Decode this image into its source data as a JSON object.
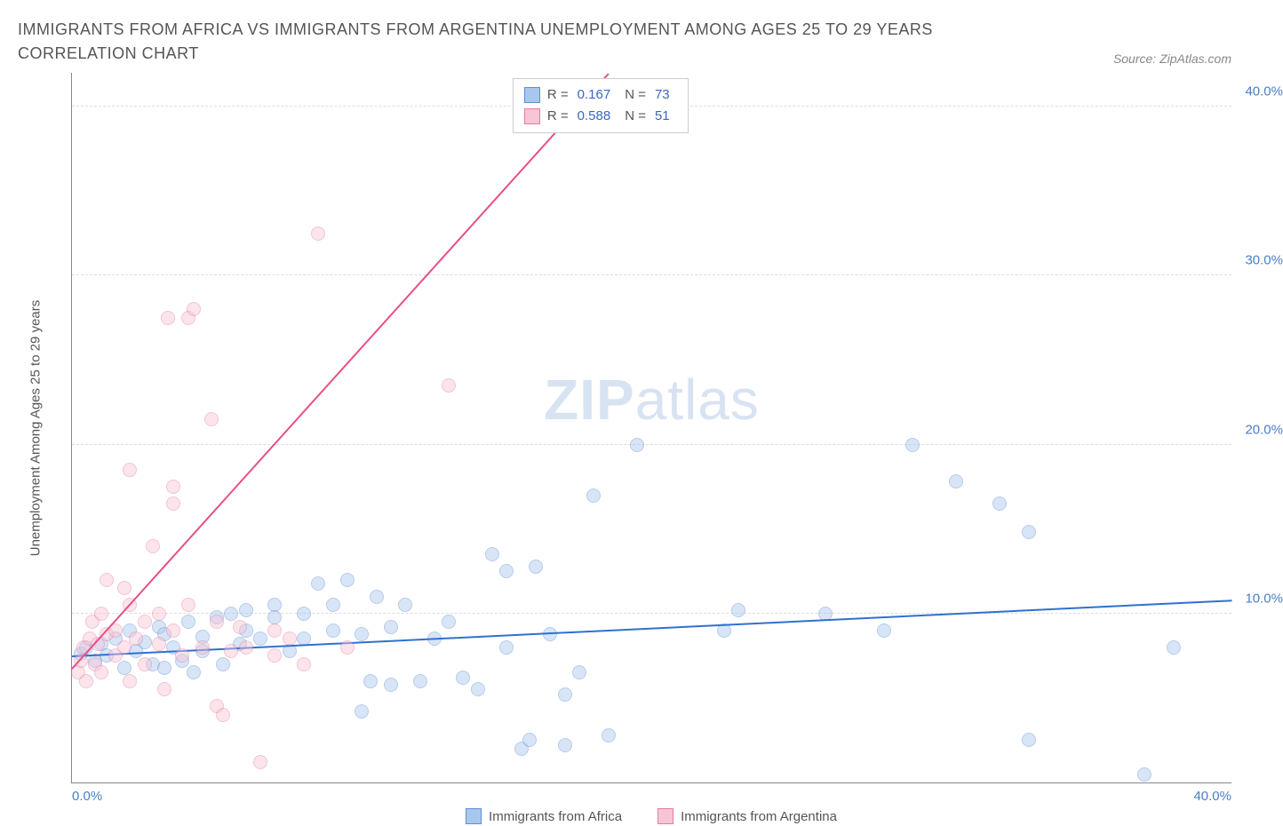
{
  "title": "IMMIGRANTS FROM AFRICA VS IMMIGRANTS FROM ARGENTINA UNEMPLOYMENT AMONG AGES 25 TO 29 YEARS CORRELATION CHART",
  "source": "Source: ZipAtlas.com",
  "y_axis_label": "Unemployment Among Ages 25 to 29 years",
  "watermark_bold": "ZIP",
  "watermark_rest": "atlas",
  "chart": {
    "type": "scatter",
    "xlim": [
      0,
      40
    ],
    "ylim": [
      0,
      42
    ],
    "x_ticks": [
      {
        "pos": 0,
        "label": "0.0%",
        "align": "left"
      },
      {
        "pos": 40,
        "label": "40.0%",
        "align": "right"
      }
    ],
    "y_ticks": [
      {
        "pos": 10,
        "label": "10.0%"
      },
      {
        "pos": 20,
        "label": "20.0%"
      },
      {
        "pos": 30,
        "label": "30.0%"
      },
      {
        "pos": 40,
        "label": "40.0%"
      }
    ],
    "grid_color": "#dddddd",
    "background_color": "#ffffff",
    "marker_radius": 8,
    "marker_opacity": 0.45,
    "series": [
      {
        "key": "africa",
        "label": "Immigrants from Africa",
        "fill": "#a9c7ee",
        "stroke": "#5e8fd4",
        "trend_color": "#2f71d0",
        "trend": {
          "x1": 0,
          "y1": 7.5,
          "x2": 40,
          "y2": 10.8
        },
        "legend_R": "0.167",
        "legend_N": "73",
        "points": [
          [
            0.3,
            7.6
          ],
          [
            0.5,
            8.0
          ],
          [
            0.8,
            7.2
          ],
          [
            1.0,
            8.2
          ],
          [
            1.2,
            7.5
          ],
          [
            1.5,
            8.5
          ],
          [
            1.8,
            6.8
          ],
          [
            2.0,
            9.0
          ],
          [
            2.2,
            7.8
          ],
          [
            2.5,
            8.3
          ],
          [
            2.8,
            7.0
          ],
          [
            3.0,
            9.2
          ],
          [
            3.2,
            6.8
          ],
          [
            3.2,
            8.8
          ],
          [
            3.5,
            8.0
          ],
          [
            3.8,
            7.2
          ],
          [
            4.0,
            9.5
          ],
          [
            4.2,
            6.5
          ],
          [
            4.5,
            8.6
          ],
          [
            4.5,
            7.8
          ],
          [
            5.0,
            9.8
          ],
          [
            5.2,
            7.0
          ],
          [
            5.5,
            10.0
          ],
          [
            5.8,
            8.2
          ],
          [
            6.0,
            9.0
          ],
          [
            6.0,
            10.2
          ],
          [
            6.5,
            8.5
          ],
          [
            7.0,
            10.5
          ],
          [
            7.0,
            9.8
          ],
          [
            7.5,
            7.8
          ],
          [
            8.0,
            10.0
          ],
          [
            8.0,
            8.5
          ],
          [
            8.5,
            11.8
          ],
          [
            9.0,
            10.5
          ],
          [
            9.0,
            9.0
          ],
          [
            9.5,
            12.0
          ],
          [
            10.0,
            8.8
          ],
          [
            10.0,
            4.2
          ],
          [
            10.3,
            6.0
          ],
          [
            10.5,
            11.0
          ],
          [
            11.0,
            9.2
          ],
          [
            11.0,
            5.8
          ],
          [
            11.5,
            10.5
          ],
          [
            12.0,
            6.0
          ],
          [
            12.5,
            8.5
          ],
          [
            13.0,
            9.5
          ],
          [
            13.5,
            6.2
          ],
          [
            14.0,
            5.5
          ],
          [
            14.5,
            13.5
          ],
          [
            15.0,
            8.0
          ],
          [
            15.0,
            12.5
          ],
          [
            15.5,
            2.0
          ],
          [
            15.8,
            2.5
          ],
          [
            16.0,
            12.8
          ],
          [
            16.5,
            8.8
          ],
          [
            17.0,
            5.2
          ],
          [
            17.0,
            2.2
          ],
          [
            17.5,
            6.5
          ],
          [
            18.0,
            17.0
          ],
          [
            18.5,
            2.8
          ],
          [
            19.5,
            20.0
          ],
          [
            22.5,
            9.0
          ],
          [
            23.0,
            10.2
          ],
          [
            26.0,
            10.0
          ],
          [
            28.0,
            9.0
          ],
          [
            29.0,
            20.0
          ],
          [
            30.5,
            17.8
          ],
          [
            32.0,
            16.5
          ],
          [
            33.0,
            14.8
          ],
          [
            33.0,
            2.5
          ],
          [
            37.0,
            0.5
          ],
          [
            38.0,
            8.0
          ]
        ]
      },
      {
        "key": "argentina",
        "label": "Immigrants from Argentina",
        "fill": "#f7c6d5",
        "stroke": "#e57ba1",
        "trend_color": "#e84f8a",
        "trend": {
          "x1": 0,
          "y1": 6.8,
          "x2": 18.5,
          "y2": 42
        },
        "legend_R": "0.588",
        "legend_N": "51",
        "points": [
          [
            0.2,
            6.5
          ],
          [
            0.3,
            7.2
          ],
          [
            0.4,
            8.0
          ],
          [
            0.5,
            6.0
          ],
          [
            0.6,
            8.5
          ],
          [
            0.7,
            9.5
          ],
          [
            0.8,
            7.0
          ],
          [
            0.9,
            8.2
          ],
          [
            1.0,
            10.0
          ],
          [
            1.0,
            6.5
          ],
          [
            1.2,
            8.8
          ],
          [
            1.2,
            12.0
          ],
          [
            1.5,
            9.0
          ],
          [
            1.5,
            7.5
          ],
          [
            1.8,
            11.5
          ],
          [
            1.8,
            8.0
          ],
          [
            2.0,
            10.5
          ],
          [
            2.0,
            6.0
          ],
          [
            2.0,
            18.5
          ],
          [
            2.2,
            8.5
          ],
          [
            2.5,
            9.5
          ],
          [
            2.5,
            7.0
          ],
          [
            2.8,
            14.0
          ],
          [
            3.0,
            8.2
          ],
          [
            3.0,
            10.0
          ],
          [
            3.2,
            5.5
          ],
          [
            3.3,
            27.5
          ],
          [
            3.5,
            9.0
          ],
          [
            3.5,
            16.5
          ],
          [
            3.5,
            17.5
          ],
          [
            3.8,
            7.5
          ],
          [
            4.0,
            10.5
          ],
          [
            4.0,
            27.5
          ],
          [
            4.2,
            28.0
          ],
          [
            4.5,
            8.0
          ],
          [
            4.8,
            21.5
          ],
          [
            5.0,
            9.5
          ],
          [
            5.0,
            4.5
          ],
          [
            5.2,
            4.0
          ],
          [
            5.5,
            7.8
          ],
          [
            5.8,
            9.2
          ],
          [
            6.0,
            8.0
          ],
          [
            6.5,
            1.2
          ],
          [
            7.0,
            7.5
          ],
          [
            7.0,
            9.0
          ],
          [
            7.5,
            8.5
          ],
          [
            8.0,
            7.0
          ],
          [
            8.5,
            32.5
          ],
          [
            9.5,
            8.0
          ],
          [
            13.0,
            23.5
          ]
        ]
      }
    ],
    "stat_legend_labels": {
      "R": "R =",
      "N": "N ="
    }
  }
}
